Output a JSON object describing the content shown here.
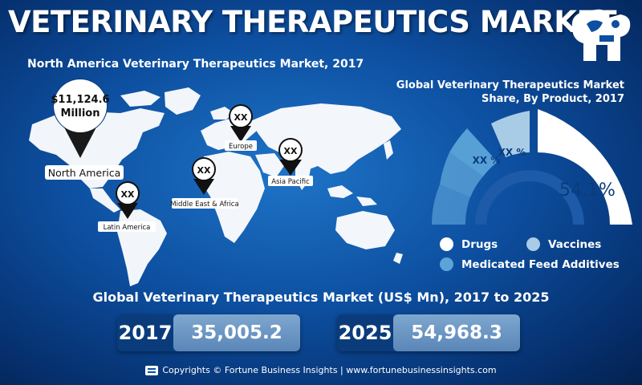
{
  "title": "VETERINARY THERAPEUTICS MARKET",
  "map_section": {
    "subtitle": "North America Veterinary Therapeutics Market, 2017",
    "highlight": {
      "value": "$11,124.6",
      "unit": "Million",
      "region": "North America"
    },
    "regions": [
      {
        "label": "Europe",
        "value": "XX"
      },
      {
        "label": "Asia Pacific",
        "value": "XX"
      },
      {
        "label": "Middle East & Africa",
        "value": "XX"
      },
      {
        "label": "Latin America",
        "value": "XX"
      }
    ]
  },
  "chart_data": [
    {
      "type": "pie",
      "title": "Global Veterinary Therapeutics Market Share, By Product, 2017",
      "slices": [
        {
          "name": "Drugs",
          "label": "54.1%",
          "value": 54.1,
          "color": "#ffffff"
        },
        {
          "name": "Vaccines",
          "label": "XX %",
          "value": null,
          "color": "#a8cbe6"
        },
        {
          "name": "Medicated Feed Additives",
          "label": "XX %",
          "value": null,
          "color": "#5ca4d8"
        }
      ],
      "legend": [
        "Drugs",
        "Vaccines",
        "Medicated Feed Additives"
      ],
      "legend_position": "bottom"
    },
    {
      "type": "table",
      "title": "Global Veterinary Therapeutics Market (US$ Mn), 2017 to 2025",
      "categories": [
        "2017",
        "2025"
      ],
      "values": [
        35005.2,
        54968.3
      ],
      "value_labels": [
        "35,005.2",
        "54,968.3"
      ]
    }
  ],
  "footer": "Copyrights © Fortune Business Insights | www.fortunebusinessinsights.com"
}
